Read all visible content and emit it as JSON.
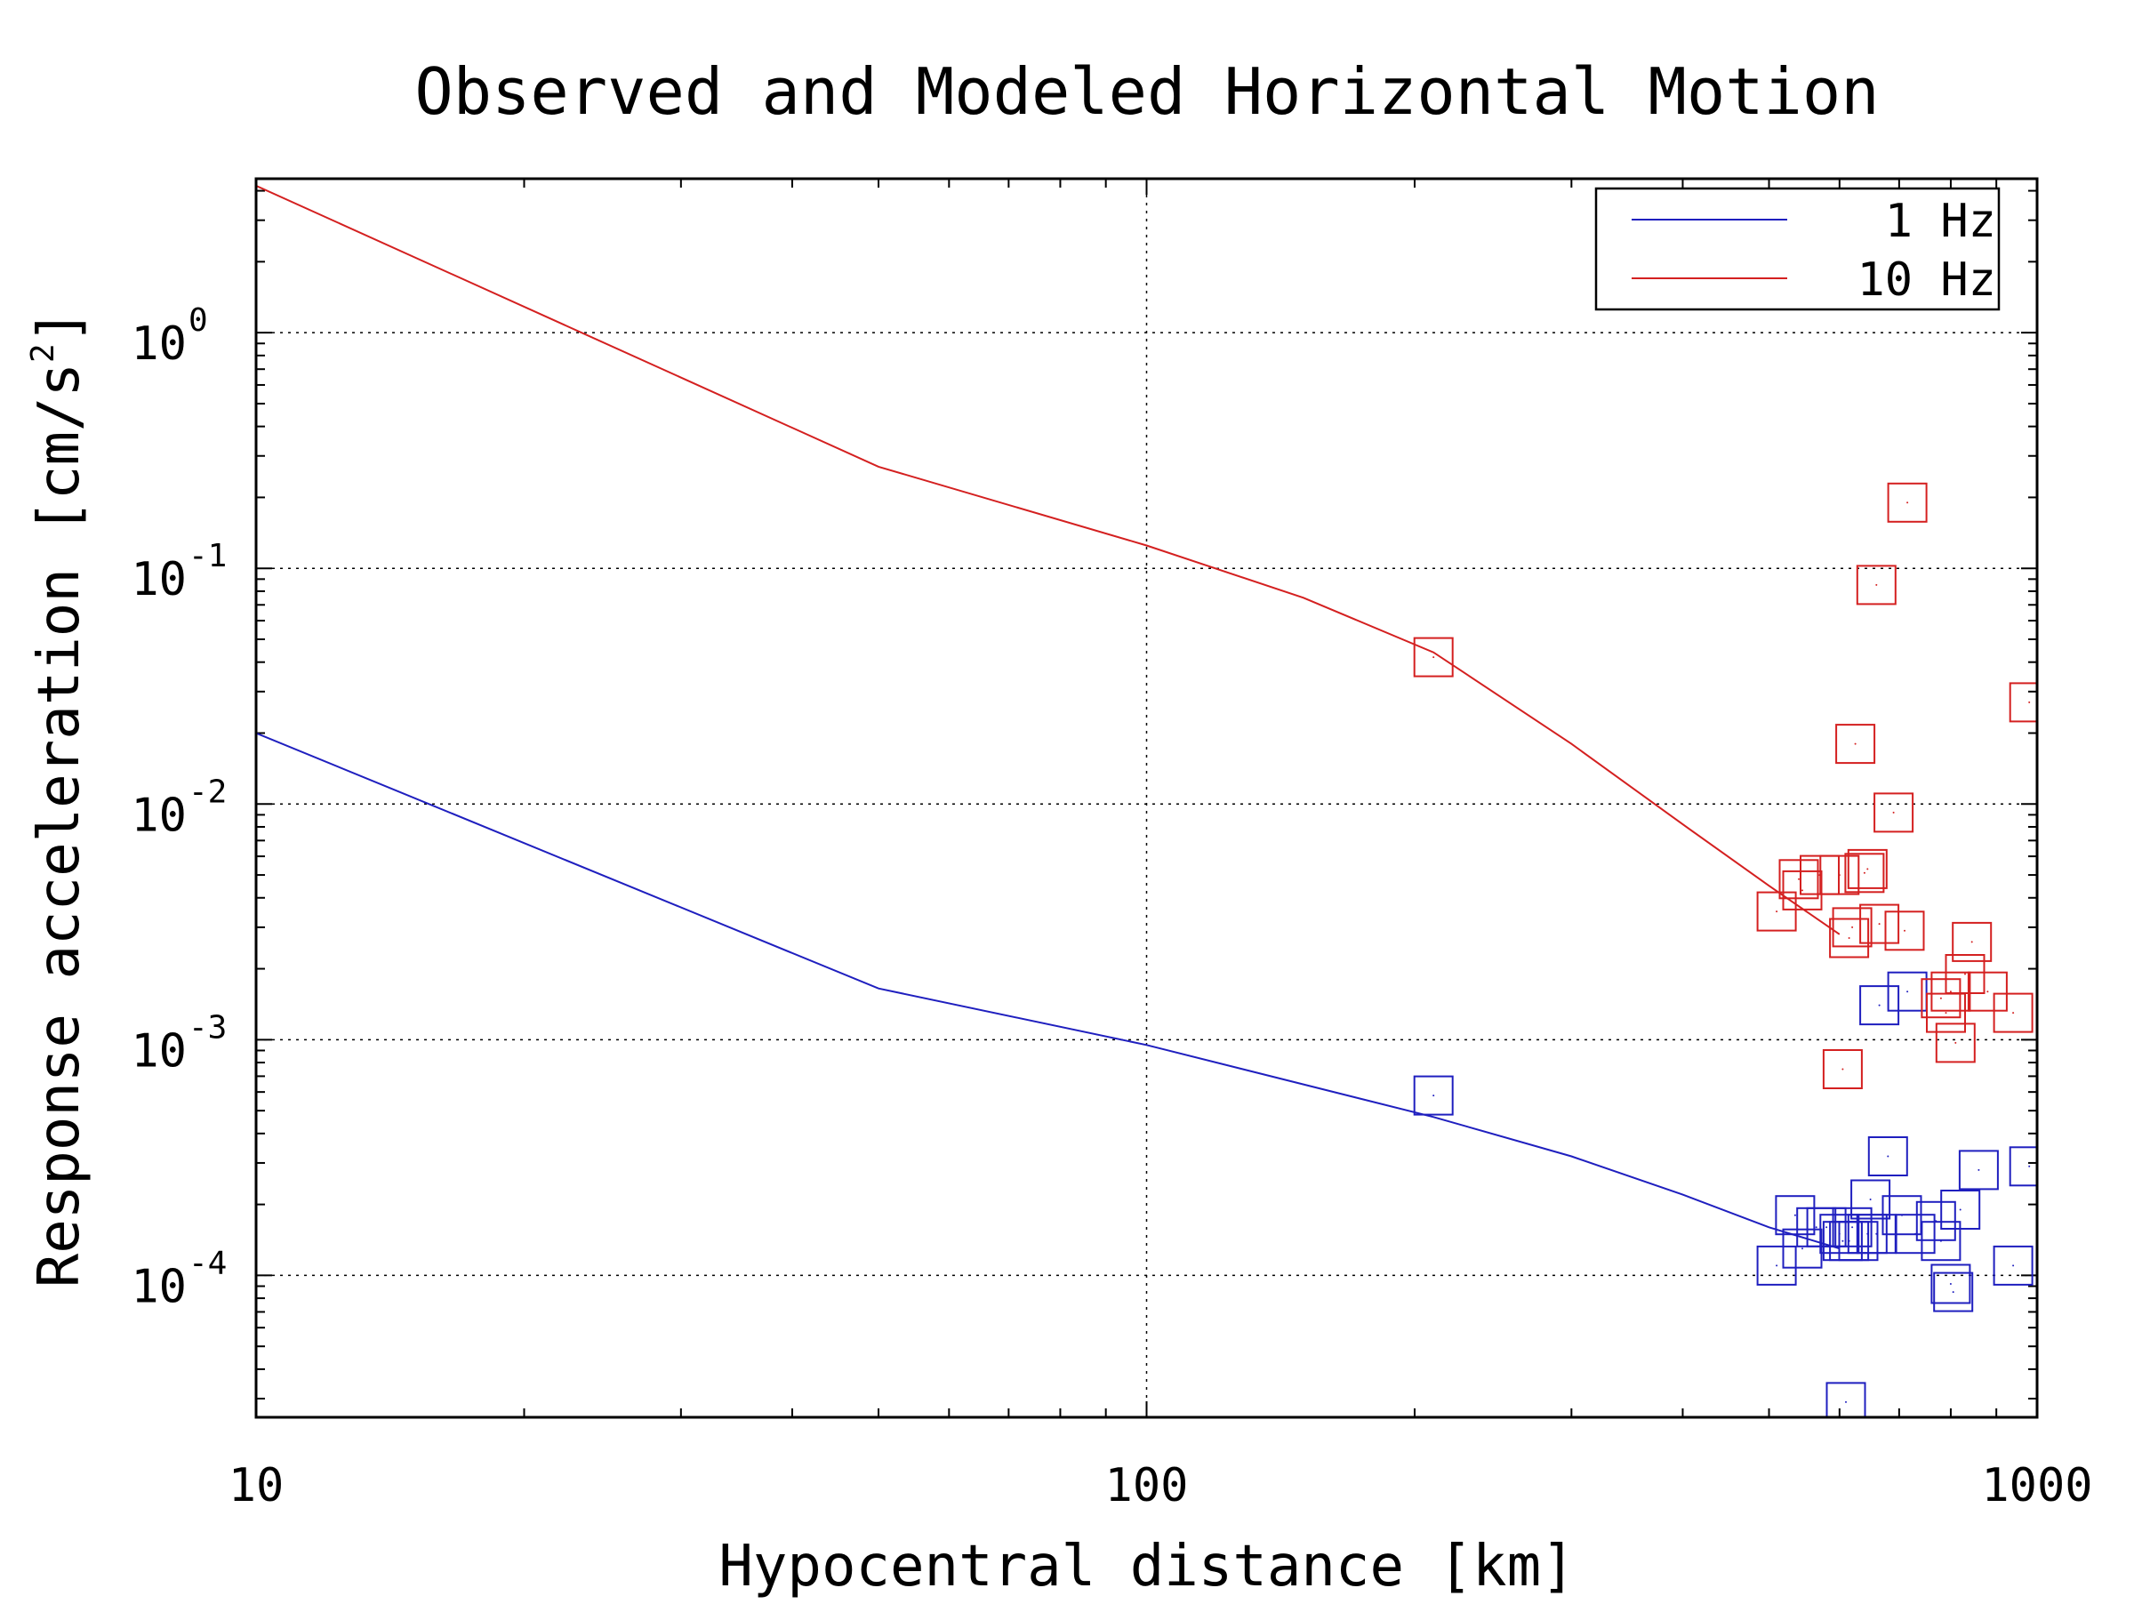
{
  "chart_data": {
    "type": "scatter",
    "title": "Observed and Modeled Horizontal Motion",
    "xlabel": "Hypocentral distance [km]",
    "ylabel": "Response acceleration [cm/s²]",
    "ylabel_main": "Response acceleration [cm/s",
    "ylabel_sup": "2",
    "ylabel_end": "]",
    "x_scale": "log",
    "y_scale": "log",
    "xlim": [
      10,
      1000
    ],
    "ylim": [
      2.5e-05,
      4.5
    ],
    "x_ticks": [
      {
        "value": 10,
        "label": "10"
      },
      {
        "value": 100,
        "label": "100"
      },
      {
        "value": 1000,
        "label": "1000"
      }
    ],
    "y_ticks": [
      {
        "value": 1,
        "base": "10",
        "exp": "0"
      },
      {
        "value": 0.1,
        "base": "10",
        "exp": "-1"
      },
      {
        "value": 0.01,
        "base": "10",
        "exp": "-2"
      },
      {
        "value": 0.001,
        "base": "10",
        "exp": "-3"
      },
      {
        "value": 0.0001,
        "base": "10",
        "exp": "-4"
      }
    ],
    "grid": true,
    "legend_position": "top-right",
    "series": [
      {
        "name": "1 Hz",
        "color": "#1f1fbf",
        "model": [
          [
            10,
            0.02
          ],
          [
            50,
            0.00165
          ],
          [
            100,
            0.00095
          ],
          [
            210,
            0.00047
          ],
          [
            300,
            0.00032
          ],
          [
            400,
            0.00022
          ],
          [
            500,
            0.00016
          ],
          [
            600,
            0.00013
          ]
        ],
        "observed": [
          [
            210,
            0.00058
          ],
          [
            510,
            0.00011
          ],
          [
            535,
            0.00018
          ],
          [
            545,
            0.00013
          ],
          [
            565,
            0.00016
          ],
          [
            580,
            0.00016
          ],
          [
            600,
            0.00015
          ],
          [
            605,
            0.00014
          ],
          [
            610,
            2.9e-05
          ],
          [
            615,
            0.00014
          ],
          [
            620,
            0.00016
          ],
          [
            630,
            0.00014
          ],
          [
            645,
            0.00015
          ],
          [
            650,
            0.00021
          ],
          [
            660,
            0.00015
          ],
          [
            665,
            0.0014
          ],
          [
            680,
            0.00032
          ],
          [
            705,
            0.00018
          ],
          [
            715,
            0.0016
          ],
          [
            730,
            0.00015
          ],
          [
            770,
            0.00017
          ],
          [
            780,
            0.00014
          ],
          [
            800,
            9.2e-05
          ],
          [
            805,
            8.5e-05
          ],
          [
            820,
            0.00019
          ],
          [
            860,
            0.00028
          ],
          [
            940,
            0.00011
          ],
          [
            980,
            0.00029
          ]
        ]
      },
      {
        "name": "10 Hz",
        "color": "#d42020",
        "model": [
          [
            10,
            4.2
          ],
          [
            50,
            0.27
          ],
          [
            100,
            0.125
          ],
          [
            150,
            0.075
          ],
          [
            210,
            0.044
          ],
          [
            300,
            0.018
          ],
          [
            400,
            0.0082
          ],
          [
            500,
            0.0045
          ],
          [
            600,
            0.0028
          ]
        ],
        "observed": [
          [
            210,
            0.042
          ],
          [
            510,
            0.0035
          ],
          [
            540,
            0.0048
          ],
          [
            545,
            0.0043
          ],
          [
            570,
            0.005
          ],
          [
            600,
            0.005
          ],
          [
            605,
            0.00075
          ],
          [
            615,
            0.0027
          ],
          [
            620,
            0.003
          ],
          [
            625,
            0.018
          ],
          [
            640,
            0.0051
          ],
          [
            645,
            0.0053
          ],
          [
            660,
            0.085
          ],
          [
            665,
            0.0031
          ],
          [
            690,
            0.0092
          ],
          [
            710,
            0.0029
          ],
          [
            715,
            0.19
          ],
          [
            780,
            0.0015
          ],
          [
            790,
            0.0013
          ],
          [
            800,
            0.0016
          ],
          [
            810,
            0.00097
          ],
          [
            830,
            0.0019
          ],
          [
            845,
            0.0026
          ],
          [
            880,
            0.0016
          ],
          [
            940,
            0.0013
          ],
          [
            980,
            0.027
          ]
        ]
      }
    ]
  }
}
